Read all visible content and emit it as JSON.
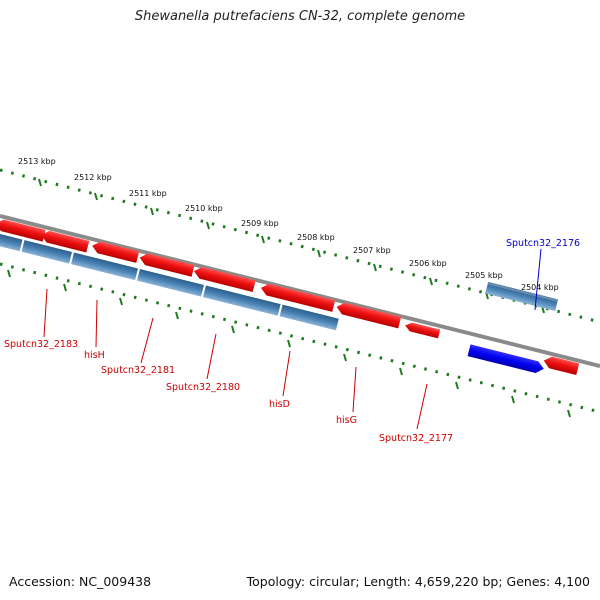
{
  "title": "Shewanella putrefaciens CN-32, complete genome",
  "footer": {
    "accession": "Accession: NC_009438",
    "summary": "Topology: circular; Length: 4,659,220 bp; Genes: 4,100"
  },
  "kbp_labels": [
    "2513 kbp",
    "2512 kbp",
    "2511 kbp",
    "2510 kbp",
    "2509 kbp",
    "2508 kbp",
    "2507 kbp",
    "2506 kbp",
    "2505 kbp",
    "2504 kbp"
  ],
  "gene_labels": [
    {
      "text": "Sputcn32_2176",
      "color": "#0000cc"
    },
    {
      "text": "Sputcn32_2183",
      "color": "#cc0000"
    },
    {
      "text": "hisH",
      "color": "#cc0000"
    },
    {
      "text": "Sputcn32_2181",
      "color": "#cc0000"
    },
    {
      "text": "Sputcn32_2180",
      "color": "#cc0000"
    },
    {
      "text": "hisD",
      "color": "#cc0000"
    },
    {
      "text": "hisG",
      "color": "#cc0000"
    },
    {
      "text": "Sputcn32_2177",
      "color": "#cc0000"
    }
  ],
  "colors": {
    "cds_red": "#ee1111",
    "gene_steel": "#4a82b4",
    "gene_blue": "#0000ee",
    "backbone": "#8a8a8a",
    "ticks": "#1f7a1f"
  }
}
